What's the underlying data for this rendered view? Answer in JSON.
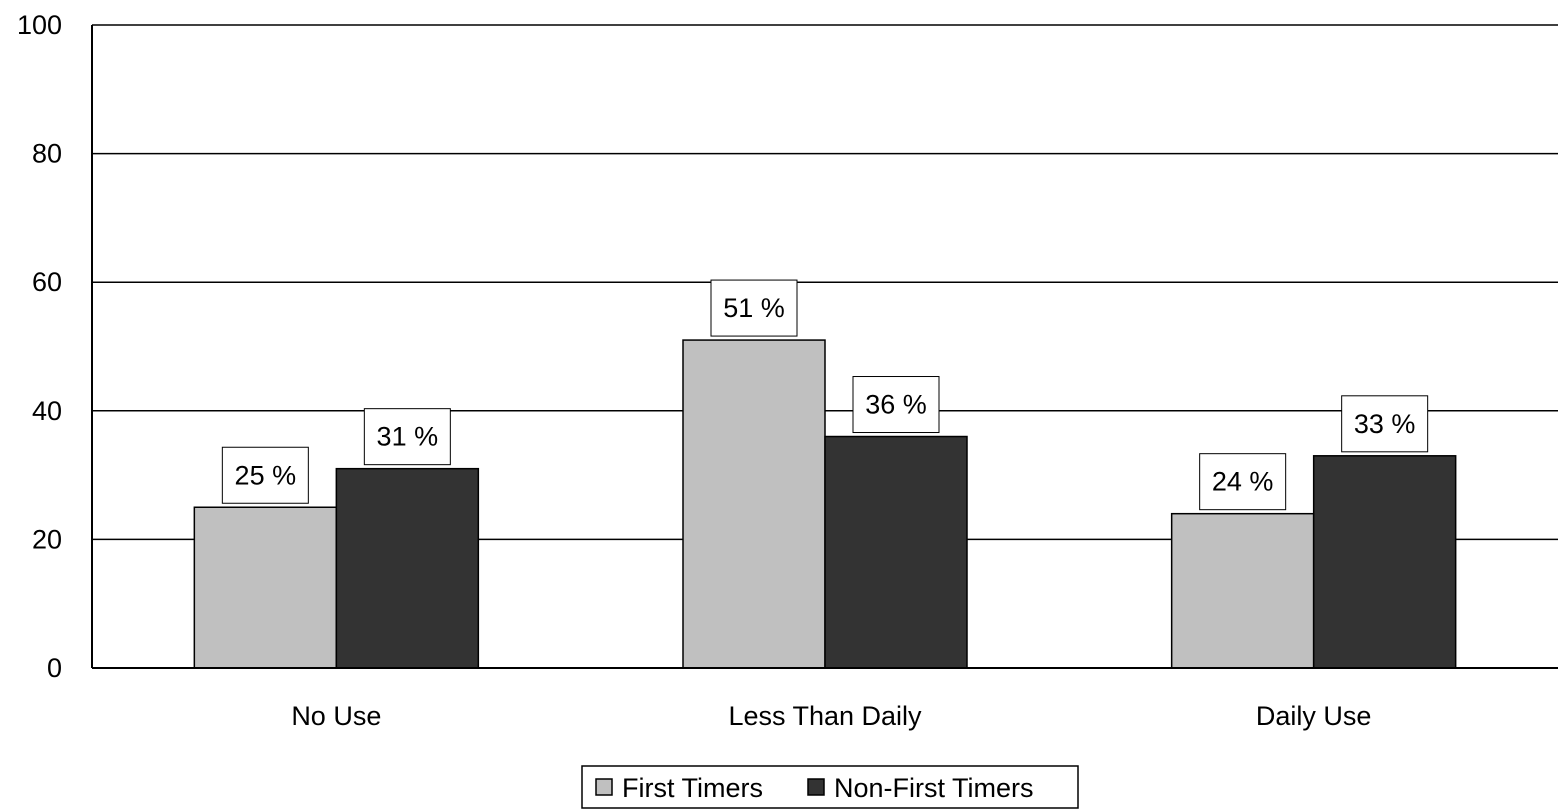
{
  "chart_data": {
    "type": "bar",
    "categories": [
      "No Use",
      "Less Than Daily",
      "Daily Use"
    ],
    "series": [
      {
        "name": "First Timers",
        "values": [
          25,
          51,
          24
        ],
        "labels": [
          "25 %",
          "51 %",
          "24 %"
        ],
        "color": "#c0c0c0"
      },
      {
        "name": "Non-First Timers",
        "values": [
          31,
          36,
          33
        ],
        "labels": [
          "31 %",
          "36 %",
          "33 %"
        ],
        "color": "#333333"
      }
    ],
    "yticks": [
      "0",
      "20",
      "40",
      "60",
      "80",
      "100"
    ],
    "ylim": [
      0,
      100
    ],
    "grid": true,
    "legend_position": "bottom-center",
    "title": "",
    "xlabel": "",
    "ylabel": ""
  }
}
